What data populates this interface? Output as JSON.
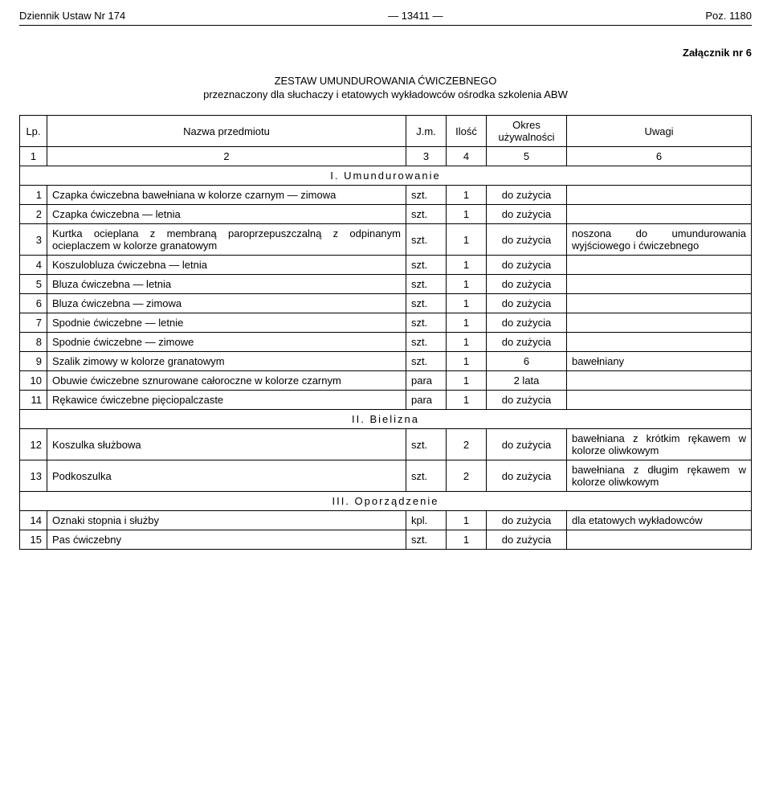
{
  "header": {
    "left": "Dziennik Ustaw Nr 174",
    "center": "—  13411  —",
    "right": "Poz. 1180"
  },
  "attachment": "Załącznik nr 6",
  "title_line1": "ZESTAW UMUNDUROWANIA ĆWICZEBNEGO",
  "title_line2": "przeznaczony dla słuchaczy i etatowych wykładowców ośrodka szkolenia ABW",
  "columns": {
    "lp": "Lp.",
    "name": "Nazwa przedmiotu",
    "jm": "J.m.",
    "qty": "Ilość",
    "okres": "Okres\nużywalności",
    "uwagi": "Uwagi"
  },
  "numrow": [
    "1",
    "2",
    "3",
    "4",
    "5",
    "6"
  ],
  "sections": [
    {
      "heading": "I. Umundurowanie",
      "rows": [
        {
          "lp": "1",
          "name": "Czapka ćwiczebna bawełniana w kolorze czarnym — zimowa",
          "jm": "szt.",
          "qty": "1",
          "okres": "do zużycia",
          "uwagi": ""
        },
        {
          "lp": "2",
          "name": "Czapka ćwiczebna — letnia",
          "jm": "szt.",
          "qty": "1",
          "okres": "do zużycia",
          "uwagi": ""
        },
        {
          "lp": "3",
          "name": "Kurtka ocieplana z membraną paroprzepuszczalną z odpinanym ocieplaczem w kolorze granatowym",
          "jm": "szt.",
          "qty": "1",
          "okres": "do zużycia",
          "uwagi": "noszona do umundurowania wyjściowego i ćwiczebnego"
        },
        {
          "lp": "4",
          "name": "Koszulobluza ćwiczebna — letnia",
          "jm": "szt.",
          "qty": "1",
          "okres": "do zużycia",
          "uwagi": ""
        },
        {
          "lp": "5",
          "name": "Bluza ćwiczebna — letnia",
          "jm": "szt.",
          "qty": "1",
          "okres": "do zużycia",
          "uwagi": ""
        },
        {
          "lp": "6",
          "name": "Bluza ćwiczebna — zimowa",
          "jm": "szt.",
          "qty": "1",
          "okres": "do zużycia",
          "uwagi": ""
        },
        {
          "lp": "7",
          "name": "Spodnie ćwiczebne — letnie",
          "jm": "szt.",
          "qty": "1",
          "okres": "do zużycia",
          "uwagi": ""
        },
        {
          "lp": "8",
          "name": "Spodnie ćwiczebne — zimowe",
          "jm": "szt.",
          "qty": "1",
          "okres": "do zużycia",
          "uwagi": ""
        },
        {
          "lp": "9",
          "name": "Szalik zimowy w kolorze granatowym",
          "jm": "szt.",
          "qty": "1",
          "okres": "6",
          "uwagi": "bawełniany"
        },
        {
          "lp": "10",
          "name": "Obuwie ćwiczebne sznurowane całoroczne w kolorze czarnym",
          "jm": "para",
          "qty": "1",
          "okres": "2 lata",
          "uwagi": ""
        },
        {
          "lp": "11",
          "name": "Rękawice ćwiczebne pięciopalczaste",
          "jm": "para",
          "qty": "1",
          "okres": "do zużycia",
          "uwagi": ""
        }
      ]
    },
    {
      "heading": "II. Bielizna",
      "rows": [
        {
          "lp": "12",
          "name": "Koszulka służbowa",
          "jm": "szt.",
          "qty": "2",
          "okres": "do zużycia",
          "uwagi": "bawełniana z krótkim rękawem w kolorze oliwkowym"
        },
        {
          "lp": "13",
          "name": "Podkoszulka",
          "jm": "szt.",
          "qty": "2",
          "okres": "do zużycia",
          "uwagi": "bawełniana z długim rękawem w kolorze oliwkowym"
        }
      ]
    },
    {
      "heading": "III. Oporządzenie",
      "rows": [
        {
          "lp": "14",
          "name": "Oznaki stopnia i służby",
          "jm": "kpl.",
          "qty": "1",
          "okres": "do zużycia",
          "uwagi": "dla etatowych wykładowców"
        },
        {
          "lp": "15",
          "name": "Pas ćwiczebny",
          "jm": "szt.",
          "qty": "1",
          "okres": "do zużycia",
          "uwagi": ""
        }
      ]
    }
  ]
}
